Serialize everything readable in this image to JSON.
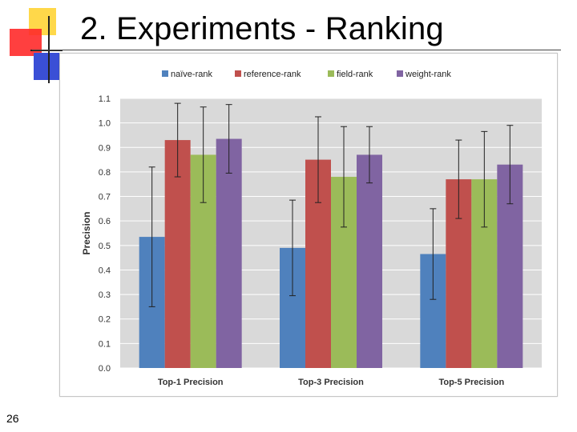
{
  "slide": {
    "title": "2. Experiments - Ranking",
    "page_number": "26"
  },
  "colors": {
    "naive-rank": "#4f81bd",
    "reference-rank": "#c0504d",
    "field-rank": "#9bbb59",
    "weight-rank": "#8064a2",
    "plot_background": "#d9d9d9",
    "gridline": "#ffffff",
    "deco_yellow": "#ffd84a",
    "deco_red": "#ff2020",
    "deco_blue": "#3a4fd6"
  },
  "chart_data": {
    "type": "bar",
    "title": "",
    "xlabel": "",
    "ylabel": "Precision",
    "ylim": [
      0.0,
      1.1
    ],
    "yticks": [
      "0.0",
      "0.1",
      "0.2",
      "0.3",
      "0.4",
      "0.5",
      "0.6",
      "0.7",
      "0.8",
      "0.9",
      "1.0",
      "1.1"
    ],
    "grid": true,
    "legend_position": "top",
    "categories": [
      "Top-1 Precision",
      "Top-3 Precision",
      "Top-5 Precision"
    ],
    "series": [
      {
        "name": "naïve-rank",
        "values": [
          0.535,
          0.49,
          0.465
        ],
        "error": [
          0.285,
          0.195,
          0.185
        ]
      },
      {
        "name": "reference-rank",
        "values": [
          0.93,
          0.85,
          0.77
        ],
        "error": [
          0.15,
          0.175,
          0.16
        ]
      },
      {
        "name": "field-rank",
        "values": [
          0.87,
          0.78,
          0.77
        ],
        "error": [
          0.195,
          0.205,
          0.195
        ]
      },
      {
        "name": "weight-rank",
        "values": [
          0.935,
          0.87,
          0.83
        ],
        "error": [
          0.14,
          0.115,
          0.16
        ]
      }
    ]
  }
}
